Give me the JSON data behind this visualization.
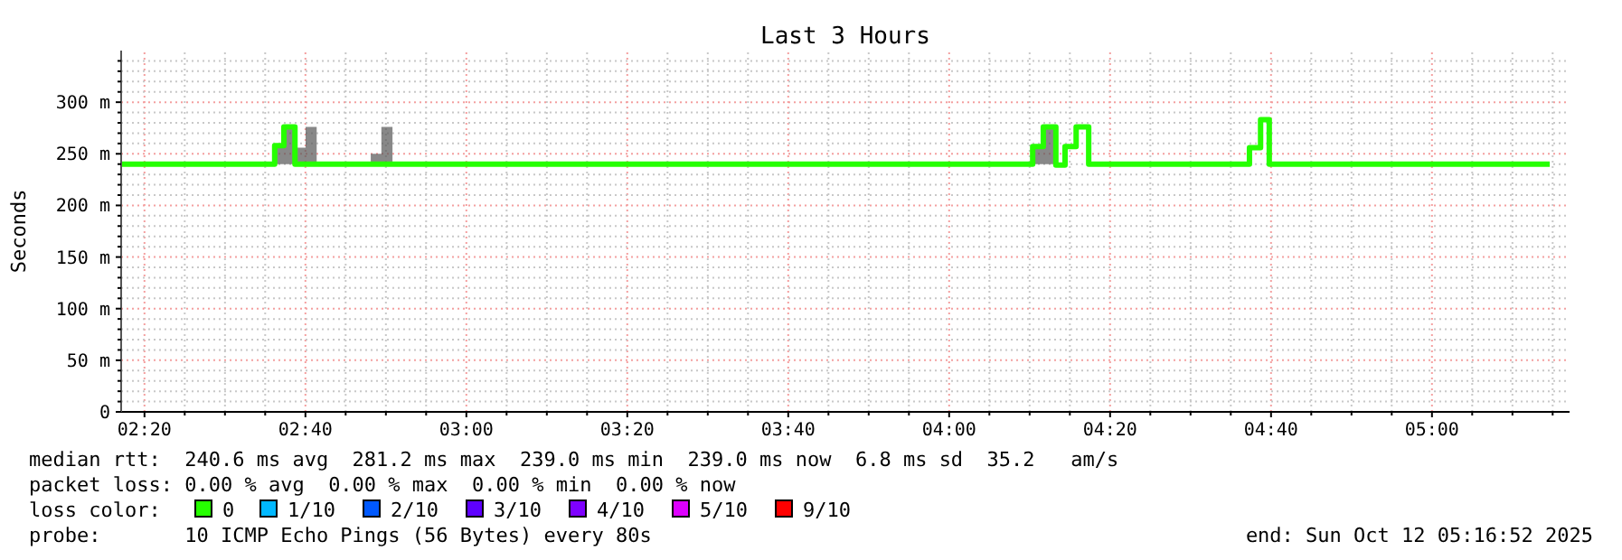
{
  "chart_data": {
    "type": "step",
    "title": "Last 3 Hours",
    "ylabel": "Seconds",
    "x": [
      2.285,
      2.603,
      2.622,
      2.645,
      2.667,
      2.69,
      2.802,
      2.824,
      2.847,
      4.173,
      4.195,
      4.221,
      4.24,
      4.263,
      4.289,
      4.622,
      4.645,
      4.663,
      5.244
    ],
    "series": [
      {
        "name": "0",
        "color": "#26ff00",
        "values": [
          240,
          258,
          276,
          240,
          240,
          240,
          240,
          240,
          240,
          257,
          276,
          239,
          257,
          276,
          240,
          256,
          283,
          240,
          240
        ],
        "lower": [
          240,
          240,
          240,
          240,
          240,
          240,
          240,
          240,
          240,
          240,
          240,
          239,
          257,
          276,
          240,
          256,
          283,
          240,
          240
        ],
        "upper": [
          240,
          258,
          276,
          256,
          276,
          240,
          250,
          276,
          240,
          257,
          276,
          239,
          257,
          276,
          240,
          256,
          283,
          240,
          240
        ]
      },
      {
        "name": "1/10",
        "color": "#00b8ff",
        "values": [
          null,
          null,
          null,
          null,
          null,
          null,
          null,
          null,
          null,
          null,
          null,
          null,
          null,
          null,
          null,
          null,
          null,
          null,
          null
        ]
      },
      {
        "name": "2/10",
        "color": "#0059ff",
        "values": [
          null,
          null,
          null,
          null,
          null,
          null,
          null,
          null,
          null,
          null,
          null,
          null,
          null,
          null,
          null,
          null,
          null,
          null,
          null
        ]
      },
      {
        "name": "3/10",
        "color": "#5e00ff",
        "values": [
          null,
          null,
          null,
          null,
          null,
          null,
          null,
          null,
          null,
          null,
          null,
          null,
          null,
          null,
          null,
          null,
          null,
          null,
          null
        ]
      },
      {
        "name": "4/10",
        "color": "#7e00ff",
        "values": [
          null,
          null,
          null,
          null,
          null,
          null,
          null,
          null,
          null,
          null,
          null,
          null,
          null,
          null,
          null,
          null,
          null,
          null,
          null
        ]
      },
      {
        "name": "5/10",
        "color": "#dd00ff",
        "values": [
          null,
          null,
          null,
          null,
          null,
          null,
          null,
          null,
          null,
          null,
          null,
          null,
          null,
          null,
          null,
          null,
          null,
          null,
          null
        ]
      },
      {
        "name": "9/10",
        "color": "#ff0000",
        "values": [
          null,
          null,
          null,
          null,
          null,
          null,
          null,
          null,
          null,
          null,
          null,
          null,
          null,
          null,
          null,
          null,
          null,
          null,
          null
        ]
      }
    ],
    "legend": "bottom",
    "legend_title": "loss color:",
    "grid": true,
    "xlim": [
      2.285,
      5.285
    ],
    "ylim": [
      0,
      350
    ],
    "xticks": [
      {
        "value": 2.33333,
        "label": "02:20"
      },
      {
        "value": 2.41667,
        "label": null
      },
      {
        "value": 2.5,
        "label": null
      },
      {
        "value": 2.58333,
        "label": null
      },
      {
        "value": 2.66667,
        "label": "02:40"
      },
      {
        "value": 2.75,
        "label": null
      },
      {
        "value": 2.83333,
        "label": null
      },
      {
        "value": 2.91667,
        "label": null
      },
      {
        "value": 3,
        "label": "03:00"
      },
      {
        "value": 3.08333,
        "label": null
      },
      {
        "value": 3.16667,
        "label": null
      },
      {
        "value": 3.25,
        "label": null
      },
      {
        "value": 3.33333,
        "label": "03:20"
      },
      {
        "value": 3.41667,
        "label": null
      },
      {
        "value": 3.5,
        "label": null
      },
      {
        "value": 3.58333,
        "label": null
      },
      {
        "value": 3.66667,
        "label": "03:40"
      },
      {
        "value": 3.75,
        "label": null
      },
      {
        "value": 3.83333,
        "label": null
      },
      {
        "value": 3.91667,
        "label": null
      },
      {
        "value": 4,
        "label": "04:00"
      },
      {
        "value": 4.08333,
        "label": null
      },
      {
        "value": 4.16667,
        "label": null
      },
      {
        "value": 4.25,
        "label": null
      },
      {
        "value": 4.33333,
        "label": "04:20"
      },
      {
        "value": 4.41667,
        "label": null
      },
      {
        "value": 4.5,
        "label": null
      },
      {
        "value": 4.58333,
        "label": null
      },
      {
        "value": 4.66667,
        "label": "04:40"
      },
      {
        "value": 4.75,
        "label": null
      },
      {
        "value": 4.83333,
        "label": null
      },
      {
        "value": 4.91667,
        "label": null
      },
      {
        "value": 5,
        "label": "05:00"
      },
      {
        "value": 5.08333,
        "label": null
      },
      {
        "value": 5.16667,
        "label": null
      },
      {
        "value": 5.25,
        "label": null
      }
    ],
    "yticks": [
      {
        "value": 0,
        "label": "0"
      },
      {
        "value": 10,
        "label": null
      },
      {
        "value": 20,
        "label": null
      },
      {
        "value": 30,
        "label": null
      },
      {
        "value": 40,
        "label": null
      },
      {
        "value": 50,
        "label": "50 m"
      },
      {
        "value": 60,
        "label": null
      },
      {
        "value": 70,
        "label": null
      },
      {
        "value": 80,
        "label": null
      },
      {
        "value": 90,
        "label": null
      },
      {
        "value": 100,
        "label": "100 m"
      },
      {
        "value": 110,
        "label": null
      },
      {
        "value": 120,
        "label": null
      },
      {
        "value": 130,
        "label": null
      },
      {
        "value": 140,
        "label": null
      },
      {
        "value": 150,
        "label": "150 m"
      },
      {
        "value": 160,
        "label": null
      },
      {
        "value": 170,
        "label": null
      },
      {
        "value": 180,
        "label": null
      },
      {
        "value": 190,
        "label": null
      },
      {
        "value": 200,
        "label": "200 m"
      },
      {
        "value": 210,
        "label": null
      },
      {
        "value": 220,
        "label": null
      },
      {
        "value": 230,
        "label": null
      },
      {
        "value": 240,
        "label": null
      },
      {
        "value": 250,
        "label": "250 m"
      },
      {
        "value": 260,
        "label": null
      },
      {
        "value": 270,
        "label": null
      },
      {
        "value": 280,
        "label": null
      },
      {
        "value": 290,
        "label": null
      },
      {
        "value": 300,
        "label": "300 m"
      },
      {
        "value": 310,
        "label": null
      },
      {
        "value": 320,
        "label": null
      },
      {
        "value": 330,
        "label": null
      },
      {
        "value": 340,
        "label": null
      }
    ],
    "annotations": [
      "median rtt:  240.6 ms avg  281.2 ms max  239.0 ms min  239.0 ms now  6.8 ms sd  35.2   am/s",
      "packet loss: 0.00 % avg  0.00 % max  0.00 % min  0.00 % now",
      "probe:       10 ICMP Echo Pings (56 Bytes) every 80s",
      "end: Sun Oct 12 05:16:52 2025"
    ]
  }
}
